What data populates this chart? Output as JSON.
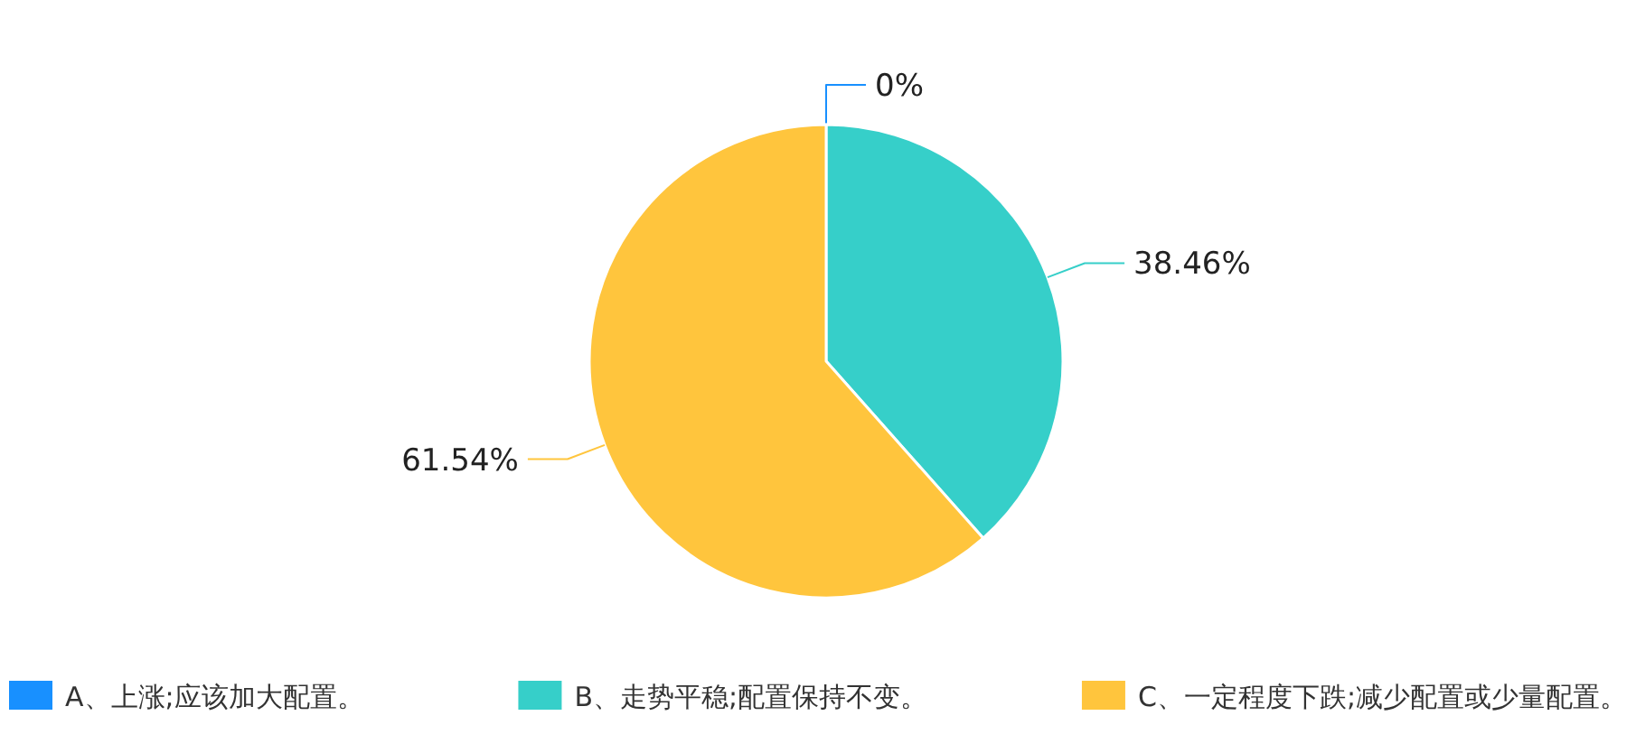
{
  "chart_data": {
    "type": "pie",
    "categories": [
      "A、上涨;应该加大配置。",
      "B、走势平稳;配置保持不变。",
      "C、一定程度下跌;减少配置或少量配置。"
    ],
    "values": [
      0,
      38.46,
      61.54
    ],
    "colors": [
      "#1890ff",
      "#36cfc9",
      "#ffc53d"
    ],
    "value_labels": [
      "0%",
      "38.46%",
      "61.54%"
    ],
    "legend": "bottom"
  }
}
